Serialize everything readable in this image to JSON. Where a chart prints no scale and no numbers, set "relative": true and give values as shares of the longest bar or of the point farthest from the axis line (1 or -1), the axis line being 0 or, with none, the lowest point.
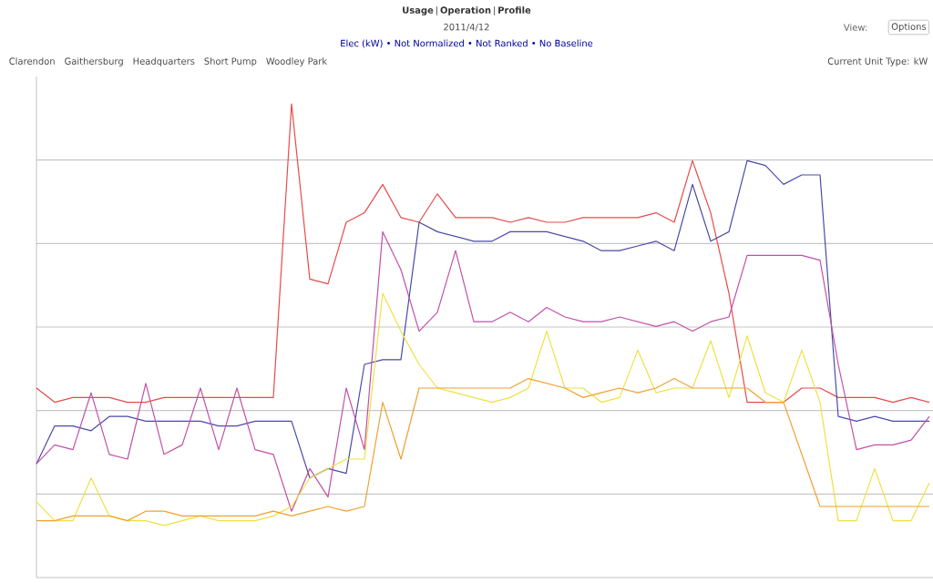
{
  "chart_data": {
    "type": "line",
    "title": "Elec (kW) • Not Normalized • Not Ranked • No Baseline",
    "subtitle": "2011/4/12",
    "annotations": [
      "Usage",
      "Operation",
      "Profile",
      "View:",
      "Options",
      "Clarendon",
      "Gaithersburg",
      "Headquarters",
      "Short Pump",
      "Woodley Park",
      "Current Unit Type: kW"
    ],
    "relative": true,
    "grid": "y",
    "categories": [
      null,
      null,
      null,
      null,
      null,
      null,
      null,
      null,
      null,
      null,
      null,
      null,
      null,
      null,
      null,
      null,
      null,
      null,
      null,
      null,
      null,
      null,
      null,
      null,
      null,
      null,
      null,
      null,
      null,
      null,
      null,
      null,
      null,
      null,
      null,
      null,
      null,
      null,
      null,
      null,
      null,
      null,
      null,
      null,
      null,
      null,
      null,
      null,
      null,
      null
    ],
    "series": [
      {
        "color": "#e84a4a",
        "values": [
          0.4,
          0.37,
          0.38,
          0.38,
          0.38,
          0.37,
          0.37,
          0.38,
          0.38,
          0.38,
          0.38,
          0.38,
          0.38,
          0.38,
          1,
          0.63,
          0.62,
          0.75,
          0.77,
          0.83,
          0.76,
          0.75,
          0.81,
          0.76,
          0.76,
          0.76,
          0.75,
          0.76,
          0.75,
          0.75,
          0.76,
          0.76,
          0.76,
          0.76,
          0.77,
          0.75,
          0.88,
          0.77,
          0.6,
          0.37,
          0.37,
          0.37,
          0.4,
          0.4,
          0.38,
          0.38,
          0.38,
          0.37,
          0.38,
          0.37
        ]
      },
      {
        "color": "#4a4aa8",
        "values": [
          0.24,
          0.32,
          0.32,
          0.31,
          0.34,
          0.34,
          0.33,
          0.33,
          0.33,
          0.33,
          0.32,
          0.32,
          0.33,
          0.33,
          0.33,
          0.21,
          0.23,
          0.22,
          0.45,
          0.46,
          0.46,
          0.75,
          0.73,
          0.72,
          0.71,
          0.71,
          0.73,
          0.73,
          0.73,
          0.72,
          0.71,
          0.69,
          0.69,
          0.7,
          0.71,
          0.69,
          0.83,
          0.71,
          0.73,
          0.88,
          0.87,
          0.83,
          0.85,
          0.85,
          0.34,
          0.33,
          0.34,
          0.33,
          0.33,
          0.33
        ]
      },
      {
        "color": "#c050a8",
        "values": [
          0.24,
          0.28,
          0.27,
          0.39,
          0.26,
          0.25,
          0.41,
          0.26,
          0.28,
          0.4,
          0.27,
          0.4,
          0.27,
          0.26,
          0.14,
          0.23,
          0.17,
          0.4,
          0.27,
          0.73,
          0.65,
          0.52,
          0.56,
          0.69,
          0.54,
          0.54,
          0.56,
          0.54,
          0.57,
          0.55,
          0.54,
          0.54,
          0.55,
          0.54,
          0.53,
          0.54,
          0.52,
          0.54,
          0.55,
          0.68,
          0.68,
          0.68,
          0.68,
          0.67,
          0.45,
          0.27,
          0.28,
          0.28,
          0.29,
          0.34
        ]
      },
      {
        "color": "#f0e040",
        "values": [
          0.16,
          0.12,
          0.12,
          0.21,
          0.13,
          0.12,
          0.12,
          0.11,
          0.12,
          0.13,
          0.12,
          0.12,
          0.12,
          0.13,
          0.15,
          0.21,
          0.23,
          0.25,
          0.25,
          0.6,
          0.52,
          0.45,
          0.4,
          0.39,
          0.38,
          0.37,
          0.38,
          0.4,
          0.52,
          0.4,
          0.4,
          0.37,
          0.38,
          0.48,
          0.39,
          0.4,
          0.4,
          0.5,
          0.38,
          0.51,
          0.39,
          0.37,
          0.48,
          0.37,
          0.12,
          0.12,
          0.23,
          0.12,
          0.12,
          0.2
        ]
      },
      {
        "color": "#f0a030",
        "values": [
          0.12,
          0.12,
          0.13,
          0.13,
          0.13,
          0.12,
          0.14,
          0.14,
          0.13,
          0.13,
          0.13,
          0.13,
          0.13,
          0.14,
          0.13,
          0.14,
          0.15,
          0.14,
          0.15,
          0.37,
          0.25,
          0.4,
          0.4,
          0.4,
          0.4,
          0.4,
          0.4,
          0.42,
          0.41,
          0.4,
          0.38,
          0.39,
          0.4,
          0.39,
          0.4,
          0.42,
          0.4,
          0.4,
          0.4,
          0.4,
          0.37,
          0.37,
          0.26,
          0.15,
          0.15,
          0.15,
          0.15,
          0.15,
          0.15,
          0.15
        ]
      }
    ]
  }
}
